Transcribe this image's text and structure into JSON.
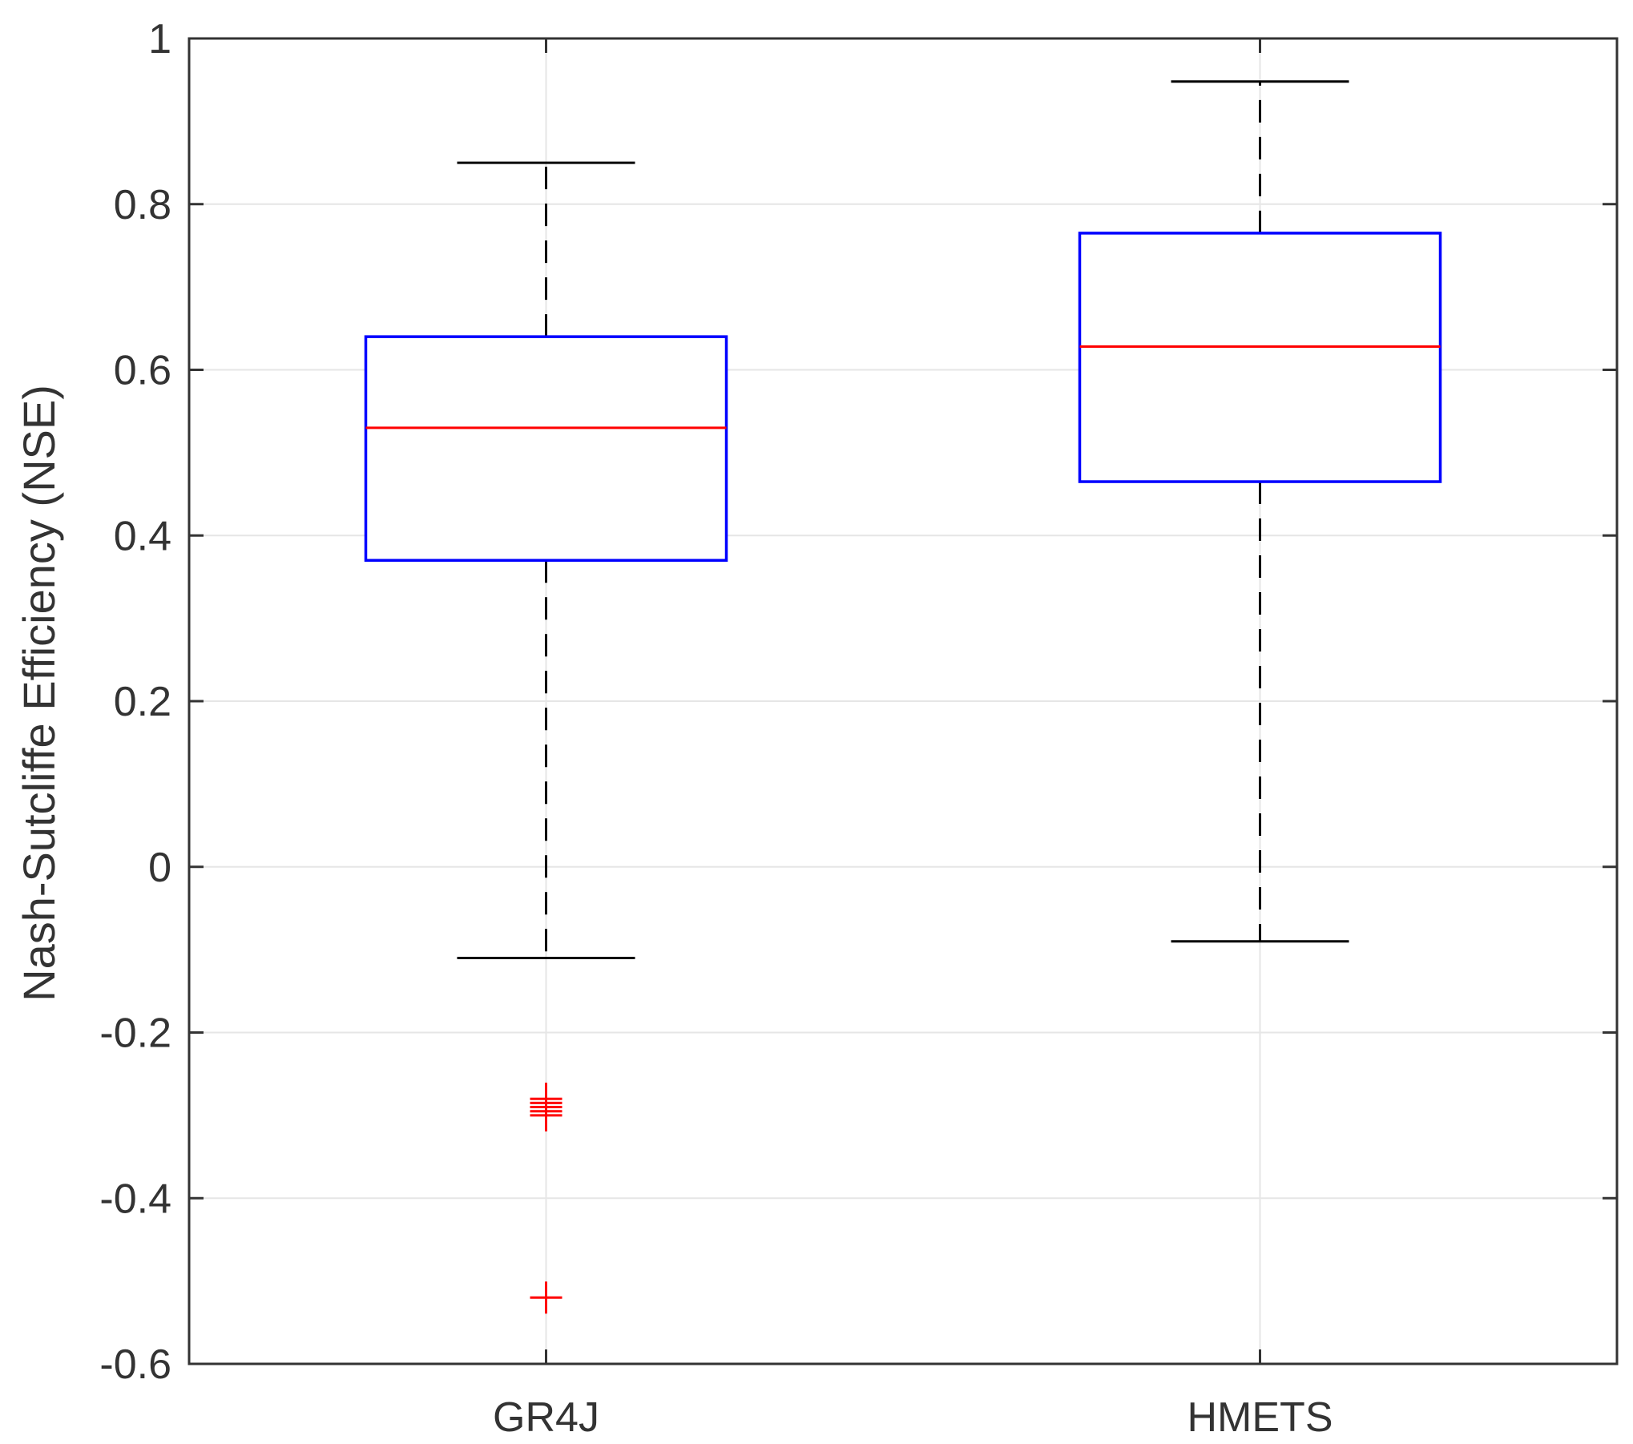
{
  "chart_data": {
    "type": "boxplot",
    "title": "",
    "xlabel": "",
    "ylabel": "Nash-Sutcliffe Efficiency (NSE)",
    "ylim": [
      -0.6,
      1.0
    ],
    "yticks": [
      "-0.6",
      "-0.4",
      "-0.2",
      "0",
      "0.2",
      "0.4",
      "0.6",
      "0.8",
      "1"
    ],
    "ytick_values": [
      -0.6,
      -0.4,
      -0.2,
      0,
      0.2,
      0.4,
      0.6,
      0.8,
      1.0
    ],
    "grid": true,
    "categories": [
      "GR4J",
      "HMETS"
    ],
    "boxes": [
      {
        "label": "GR4J",
        "whisker_low": -0.11,
        "q1": 0.37,
        "median": 0.53,
        "q3": 0.64,
        "whisker_high": 0.85,
        "outliers": [
          -0.28,
          -0.285,
          -0.29,
          -0.295,
          -0.3,
          -0.52
        ]
      },
      {
        "label": "HMETS",
        "whisker_low": -0.09,
        "q1": 0.465,
        "median": 0.628,
        "q3": 0.765,
        "whisker_high": 0.948,
        "outliers": []
      }
    ],
    "colors": {
      "box": "#0000ff",
      "median": "#ff0000",
      "whisker": "#000000",
      "outlier": "#ff0000",
      "grid": "#e6e6e6",
      "axes": "#333333"
    }
  }
}
